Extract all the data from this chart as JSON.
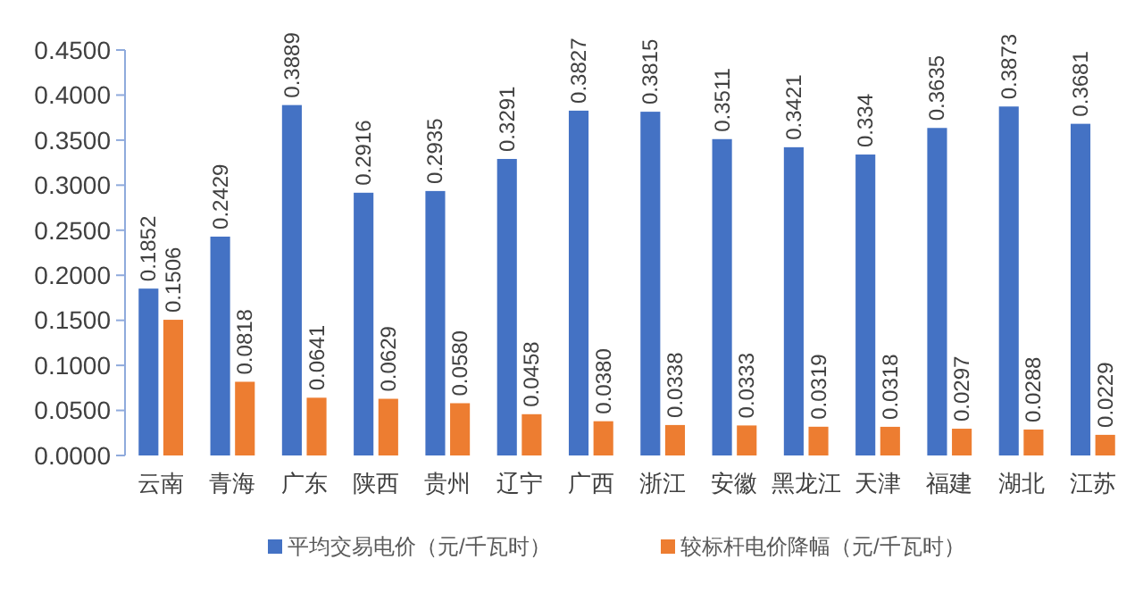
{
  "chart_data": {
    "type": "bar",
    "categories": [
      "云南",
      "青海",
      "广东",
      "陕西",
      "贵州",
      "辽宁",
      "广西",
      "浙江",
      "安徽",
      "黑龙江",
      "天津",
      "福建",
      "湖北",
      "江苏"
    ],
    "series": [
      {
        "name": "平均交易电价（元/千瓦时）",
        "color": "#4472c4",
        "values": [
          0.1852,
          0.2429,
          0.3889,
          0.2916,
          0.2935,
          0.3291,
          0.3827,
          0.3815,
          0.3511,
          0.3421,
          0.334,
          0.3635,
          0.3873,
          0.3681
        ],
        "value_labels": [
          "0.1852",
          "0.2429",
          "0.3889",
          "0.2916",
          "0.2935",
          "0.3291",
          "0.3827",
          "0.3815",
          "0.3511",
          "0.3421",
          "0.334",
          "0.3635",
          "0.3873",
          "0.3681"
        ]
      },
      {
        "name": "较标杆电价降幅（元/千瓦时）",
        "color": "#ed7d31",
        "values": [
          0.1506,
          0.0818,
          0.0641,
          0.0629,
          0.058,
          0.0458,
          0.038,
          0.0338,
          0.0333,
          0.0319,
          0.0318,
          0.0297,
          0.0288,
          0.0229
        ],
        "value_labels": [
          "0.1506",
          "0.0818",
          "0.0641",
          "0.0629",
          "0.0580",
          "0.0458",
          "0.0380",
          "0.0338",
          "0.0333",
          "0.0319",
          "0.0318",
          "0.0297",
          "0.0288",
          "0.0229"
        ]
      }
    ],
    "ylim": [
      0,
      0.45
    ],
    "yticks": [
      {
        "value": 0,
        "label": "0.0000"
      },
      {
        "value": 0.05,
        "label": "0.0500"
      },
      {
        "value": 0.1,
        "label": "0.1000"
      },
      {
        "value": 0.15,
        "label": "0.1500"
      },
      {
        "value": 0.2,
        "label": "0.2000"
      },
      {
        "value": 0.25,
        "label": "0.2500"
      },
      {
        "value": 0.3,
        "label": "0.3000"
      },
      {
        "value": 0.35,
        "label": "0.3500"
      },
      {
        "value": 0.4,
        "label": "0.4000"
      },
      {
        "value": 0.45,
        "label": "0.4500"
      }
    ],
    "grid": false,
    "legend": "bottom"
  }
}
